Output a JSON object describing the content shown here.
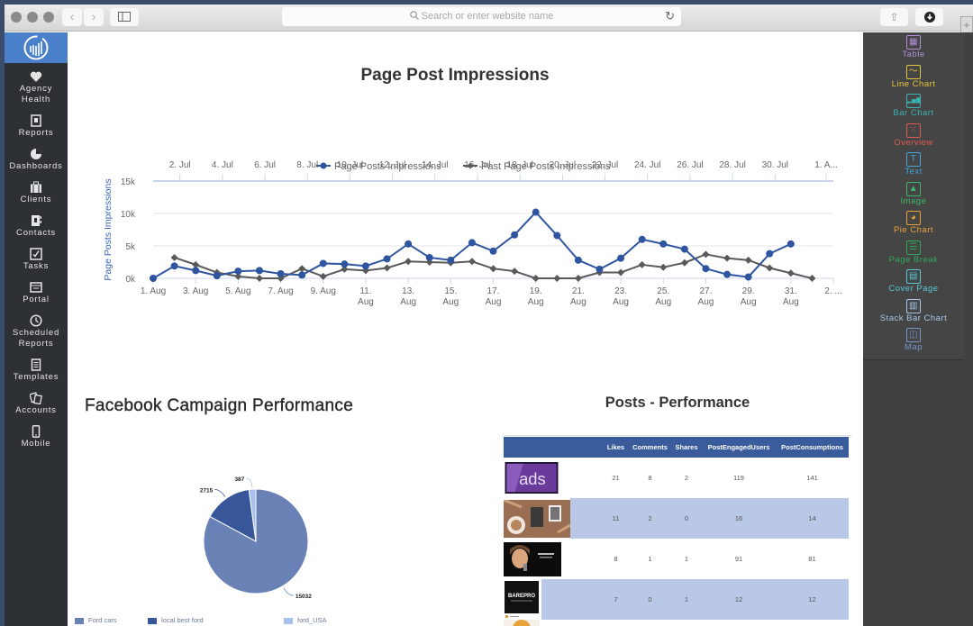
{
  "browser": {
    "search_placeholder": "Search or enter website name",
    "back_icon": "‹",
    "forward_icon": "›",
    "reload_icon": "↻",
    "share_icon": "⇧",
    "download_icon": "⬇",
    "new_tab_icon": "+"
  },
  "sidebar": {
    "items": [
      {
        "label": "Agency Health",
        "line1": "Agency",
        "line2": "Health",
        "icon": "heart-icon"
      },
      {
        "label": "Reports",
        "icon": "report-icon"
      },
      {
        "label": "Dashboards",
        "icon": "pie-icon"
      },
      {
        "label": "Clients",
        "icon": "briefcase-icon"
      },
      {
        "label": "Contacts",
        "icon": "contacts-icon"
      },
      {
        "label": "Tasks",
        "icon": "checkbox-icon"
      },
      {
        "label": "Portal",
        "icon": "portal-icon"
      },
      {
        "label": "Scheduled Reports",
        "line1": "Scheduled",
        "line2": "Reports",
        "icon": "clock-icon"
      },
      {
        "label": "Templates",
        "icon": "template-icon"
      },
      {
        "label": "Accounts",
        "icon": "accounts-icon"
      },
      {
        "label": "Mobile",
        "icon": "mobile-icon"
      }
    ]
  },
  "widgets": [
    {
      "label": "Table",
      "color": "#b48fd8",
      "glyph": "▦"
    },
    {
      "label": "Line Chart",
      "color": "#e3c640",
      "glyph": "〜"
    },
    {
      "label": "Bar Chart",
      "color": "#3bb3b0",
      "glyph": "▂▅▇"
    },
    {
      "label": "Overview",
      "color": "#e05a52",
      "glyph": "⁙"
    },
    {
      "label": "Text",
      "color": "#45a6d8",
      "glyph": "T"
    },
    {
      "label": "Image",
      "color": "#3fb767",
      "glyph": "▲"
    },
    {
      "label": "Pie Chart",
      "color": "#e8a23a",
      "glyph": "◕"
    },
    {
      "label": "Page Break",
      "color": "#2fa85a",
      "glyph": "☰"
    },
    {
      "label": "Cover Page",
      "color": "#57c8d8",
      "glyph": "▤"
    },
    {
      "label": "Stack Bar Chart",
      "color": "#a9c6ea",
      "glyph": "▥"
    },
    {
      "label": "Map",
      "color": "#7a95c9",
      "glyph": "◫"
    }
  ],
  "line_section": {
    "title": "Page Post Impressions"
  },
  "pie_section": {
    "title": "Facebook Campaign Performance"
  },
  "table_section": {
    "title": "Posts - Performance",
    "columns": [
      "",
      "Likes",
      "Comments",
      "Shares",
      "PostEngagedUsers",
      "PostConsumptions"
    ],
    "rows": [
      {
        "thumb": "ads",
        "likes": "21",
        "comments": "8",
        "shares": "2",
        "engaged": "119",
        "consumptions": "141"
      },
      {
        "thumb": "coffee-flatlay",
        "likes": "11",
        "comments": "2",
        "shares": "0",
        "engaged": "16",
        "consumptions": "14"
      },
      {
        "thumb": "woman-portrait",
        "likes": "8",
        "comments": "1",
        "shares": "1",
        "engaged": "91",
        "consumptions": "81"
      },
      {
        "thumb": "barepro",
        "likes": "7",
        "comments": "0",
        "shares": "1",
        "engaged": "12",
        "consumptions": "12"
      }
    ]
  },
  "chart_data": [
    {
      "type": "line",
      "title": "Page Post Impressions",
      "ylabel": "Page Posts Impressions",
      "ylim": [
        0,
        15000
      ],
      "yticks": [
        "0k",
        "5k",
        "10k",
        "15k"
      ],
      "x_bottom_ticks": [
        "1. Aug",
        "3. Aug",
        "5. Aug",
        "7. Aug",
        "9. Aug",
        "11. Aug",
        "13. Aug",
        "15. Aug",
        "17. Aug",
        "19. Aug",
        "21. Aug",
        "23. Aug",
        "25. Aug",
        "27. Aug",
        "29. Aug",
        "31. Aug",
        "2. ..."
      ],
      "x_top_ticks": [
        "2. Jul",
        "4. Jul",
        "6. Jul",
        "8. Jul",
        "10. Jul",
        "12. Jul",
        "14. Jul",
        "16. Jul",
        "18. Jul",
        "20. Jul",
        "22. Jul",
        "24. Jul",
        "26. Jul",
        "28. Jul",
        "30. Jul",
        "1. A..."
      ],
      "legend_position": "top",
      "grid": true,
      "series": [
        {
          "name": "Page Posts Impressions",
          "color": "#2f55a0",
          "marker": "circle",
          "x_start_day": 1,
          "values": [
            0,
            1900,
            1200,
            400,
            1100,
            1200,
            700,
            500,
            2300,
            2200,
            1900,
            3000,
            5300,
            3200,
            2800,
            5500,
            4200,
            6700,
            10200,
            6600,
            2800,
            1400,
            3100,
            6000,
            5300,
            4500,
            1500,
            600,
            200,
            3800,
            5300
          ]
        },
        {
          "name": "Past Page Posts Impressions",
          "color": "#5a5a5a",
          "marker": "diamond",
          "x_start_day": 1,
          "values": [
            3200,
            2100,
            900,
            300,
            0,
            0,
            1500,
            300,
            1400,
            1200,
            1600,
            2600,
            2500,
            2400,
            2600,
            1500,
            1100,
            0,
            0,
            0,
            900,
            900,
            2100,
            1700,
            2400,
            3700,
            3100,
            2800,
            1600,
            800,
            0
          ]
        }
      ]
    },
    {
      "type": "pie",
      "title": "Facebook Campaign Performance",
      "legend_position": "bottom",
      "slices": [
        {
          "label": "Ford cars",
          "value": 15032,
          "color": "#6a81b5"
        },
        {
          "label": "local best ford",
          "value": 2715,
          "color": "#37579a"
        },
        {
          "label": "ford_USA",
          "value": 387,
          "color": "#a9c1ef"
        }
      ]
    }
  ]
}
